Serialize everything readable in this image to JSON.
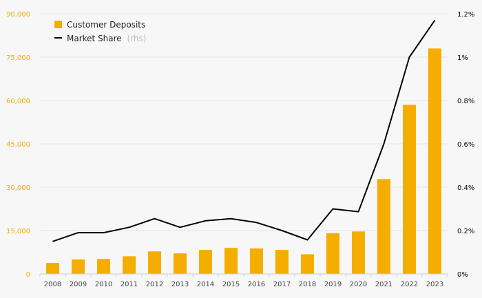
{
  "chart_data": {
    "type": "bar",
    "title": "",
    "xlabel": "",
    "ylabel": "",
    "categories": [
      "2008",
      "2009",
      "2010",
      "2011",
      "2012",
      "2013",
      "2014",
      "2015",
      "2016",
      "2017",
      "2018",
      "2019",
      "2020",
      "2021",
      "2022",
      "2023"
    ],
    "series": [
      {
        "name": "Customer Deposits",
        "type": "bar",
        "axis": "left",
        "color": "#f5ad00",
        "values": [
          3800,
          5000,
          5200,
          6100,
          7800,
          7100,
          8300,
          9000,
          8800,
          8300,
          6800,
          14100,
          14700,
          32800,
          58500,
          78000
        ]
      },
      {
        "name": "Market Share",
        "type": "line",
        "axis": "right",
        "color": "#000000",
        "values": [
          0.15,
          0.19,
          0.19,
          0.215,
          0.255,
          0.215,
          0.245,
          0.255,
          0.237,
          0.2,
          0.157,
          0.3,
          0.287,
          0.6,
          1.0,
          1.17
        ]
      }
    ],
    "left_axis": {
      "ylim": [
        0,
        90000
      ],
      "ticks": [
        0,
        15000,
        30000,
        45000,
        60000,
        75000,
        90000
      ],
      "tick_labels": [
        "0",
        "15,000",
        "30,000",
        "45,000",
        "60,000",
        "75,000",
        "90,000"
      ],
      "color": "#f5ad00"
    },
    "right_axis": {
      "ylim": [
        0,
        1.2
      ],
      "ticks": [
        0,
        0.2,
        0.4,
        0.6,
        0.8,
        1.0,
        1.2
      ],
      "tick_labels": [
        "0%",
        "0.2%",
        "0.4%",
        "0.6%",
        "0.8%",
        "1%",
        "1.2%"
      ],
      "color": "#000000"
    },
    "grid": true,
    "legend": {
      "placement": "top-left",
      "items": [
        {
          "label": "Customer Deposits",
          "suffix": ""
        },
        {
          "label": "Market Share",
          "suffix": "(rhs)"
        }
      ]
    }
  }
}
